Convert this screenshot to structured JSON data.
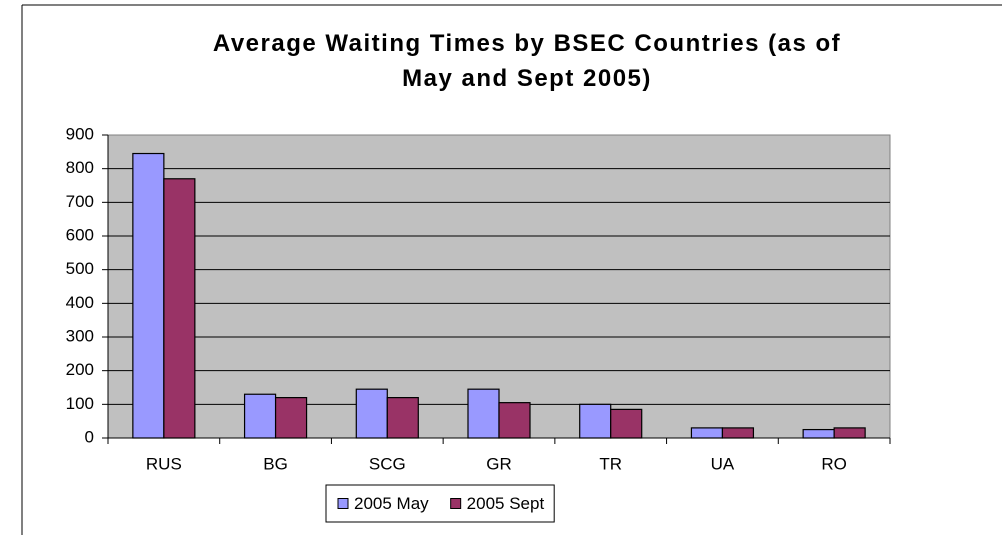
{
  "chart_data": {
    "type": "bar",
    "title": "Average Waiting Times by BSEC Countries (as of May and Sept 2005)",
    "categories": [
      "RUS",
      "BG",
      "SCG",
      "GR",
      "TR",
      "UA",
      "RO"
    ],
    "series": [
      {
        "name": "2005 May",
        "color": "#9999ff",
        "values": [
          845,
          130,
          145,
          145,
          100,
          30,
          25
        ]
      },
      {
        "name": "2005 Sept",
        "color": "#993366",
        "values": [
          770,
          120,
          120,
          105,
          85,
          30,
          30
        ]
      }
    ],
    "ylim": [
      0,
      900
    ],
    "yticks": [
      0,
      100,
      200,
      300,
      400,
      500,
      600,
      700,
      800,
      900
    ],
    "grid": true,
    "legend": "bottom"
  }
}
